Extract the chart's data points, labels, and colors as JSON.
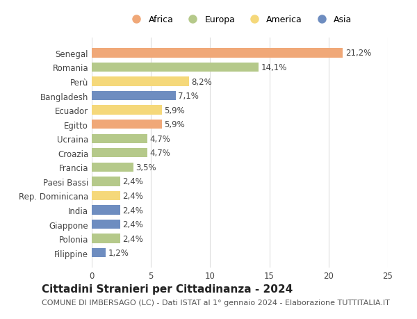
{
  "categories": [
    "Senegal",
    "Romania",
    "Perù",
    "Bangladesh",
    "Ecuador",
    "Egitto",
    "Ucraina",
    "Croazia",
    "Francia",
    "Paesi Bassi",
    "Rep. Dominicana",
    "India",
    "Giappone",
    "Polonia",
    "Filippine"
  ],
  "values": [
    21.2,
    14.1,
    8.2,
    7.1,
    5.9,
    5.9,
    4.7,
    4.7,
    3.5,
    2.4,
    2.4,
    2.4,
    2.4,
    2.4,
    1.2
  ],
  "labels": [
    "21,2%",
    "14,1%",
    "8,2%",
    "7,1%",
    "5,9%",
    "5,9%",
    "4,7%",
    "4,7%",
    "3,5%",
    "2,4%",
    "2,4%",
    "2,4%",
    "2,4%",
    "2,4%",
    "1,2%"
  ],
  "continents": [
    "Africa",
    "Europa",
    "America",
    "Asia",
    "America",
    "Africa",
    "Europa",
    "Europa",
    "Europa",
    "Europa",
    "America",
    "Asia",
    "Asia",
    "Europa",
    "Asia"
  ],
  "colors": {
    "Africa": "#F0A878",
    "Europa": "#B5C98A",
    "America": "#F5D87A",
    "Asia": "#6E8DC0"
  },
  "legend_entries": [
    "Africa",
    "Europa",
    "America",
    "Asia"
  ],
  "xlim": [
    0,
    25
  ],
  "xticks": [
    0,
    5,
    10,
    15,
    20,
    25
  ],
  "title": "Cittadini Stranieri per Cittadinanza - 2024",
  "subtitle": "COMUNE DI IMBERSAGO (LC) - Dati ISTAT al 1° gennaio 2024 - Elaborazione TUTTITALIA.IT",
  "background_color": "#ffffff",
  "grid_color": "#dddddd",
  "bar_height": 0.65,
  "label_fontsize": 8.5,
  "tick_fontsize": 8.5,
  "title_fontsize": 11,
  "subtitle_fontsize": 8
}
